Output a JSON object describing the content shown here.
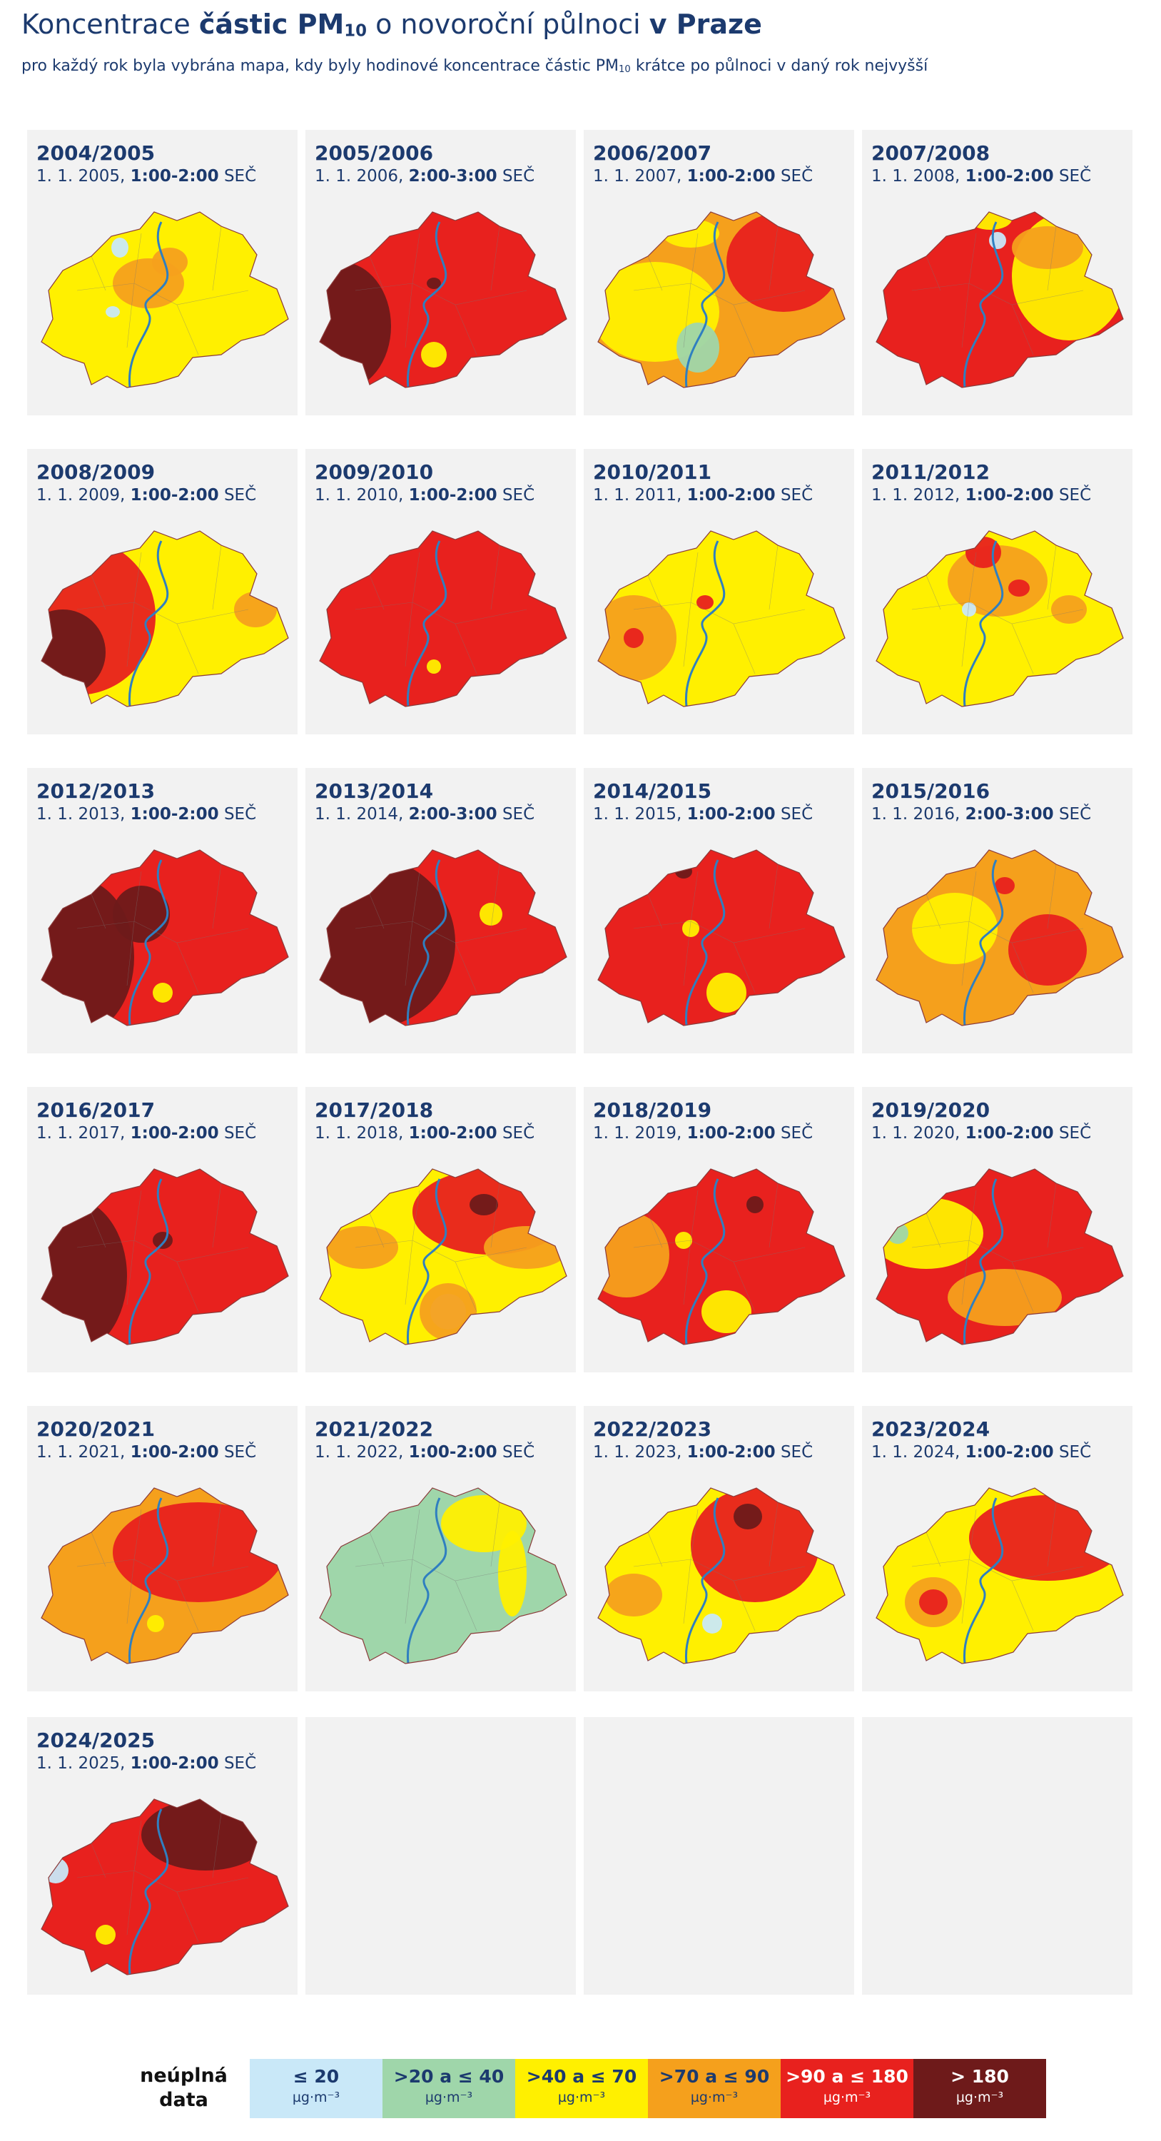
{
  "header": {
    "title": [
      "Koncentrace ",
      "částic PM",
      "10",
      " o novoroční půlnoci ",
      "v Praze"
    ],
    "subtitle": [
      "pro každý rok byla vybrána mapa, kdy byly hodinové koncentrace částic PM",
      "10",
      " krátce po půlnoci v daný rok nejvyšší"
    ]
  },
  "panels": [
    {
      "season": "2004/2005",
      "date": "1. 1. 2005, ",
      "time": "1:00-2:00",
      "zone": " SEČ"
    },
    {
      "season": "2005/2006",
      "date": "1. 1. 2006, ",
      "time": "2:00-3:00",
      "zone": " SEČ"
    },
    {
      "season": "2006/2007",
      "date": "1. 1. 2007, ",
      "time": "1:00-2:00",
      "zone": " SEČ"
    },
    {
      "season": "2007/2008",
      "date": "1. 1. 2008, ",
      "time": "1:00-2:00",
      "zone": " SEČ"
    },
    {
      "season": "2008/2009",
      "date": "1. 1. 2009, ",
      "time": "1:00-2:00",
      "zone": " SEČ"
    },
    {
      "season": "2009/2010",
      "date": "1. 1. 2010, ",
      "time": "1:00-2:00",
      "zone": " SEČ"
    },
    {
      "season": "2010/2011",
      "date": "1. 1. 2011, ",
      "time": "1:00-2:00",
      "zone": " SEČ"
    },
    {
      "season": "2011/2012",
      "date": "1. 1. 2012, ",
      "time": "1:00-2:00",
      "zone": " SEČ"
    },
    {
      "season": "2012/2013",
      "date": "1. 1. 2013, ",
      "time": "1:00-2:00",
      "zone": " SEČ"
    },
    {
      "season": "2013/2014",
      "date": "1. 1. 2014, ",
      "time": "2:00-3:00",
      "zone": " SEČ"
    },
    {
      "season": "2014/2015",
      "date": "1. 1. 2015, ",
      "time": "1:00-2:00",
      "zone": " SEČ"
    },
    {
      "season": "2015/2016",
      "date": "1. 1. 2016, ",
      "time": "2:00-3:00",
      "zone": " SEČ"
    },
    {
      "season": "2016/2017",
      "date": "1. 1. 2017, ",
      "time": "1:00-2:00",
      "zone": " SEČ"
    },
    {
      "season": "2017/2018",
      "date": "1. 1. 2018, ",
      "time": "1:00-2:00",
      "zone": " SEČ"
    },
    {
      "season": "2018/2019",
      "date": "1. 1. 2019, ",
      "time": "1:00-2:00",
      "zone": " SEČ"
    },
    {
      "season": "2019/2020",
      "date": "1. 1. 2020, ",
      "time": "1:00-2:00",
      "zone": " SEČ"
    },
    {
      "season": "2020/2021",
      "date": "1. 1. 2021, ",
      "time": "1:00-2:00",
      "zone": " SEČ"
    },
    {
      "season": "2021/2022",
      "date": "1. 1. 2022, ",
      "time": "1:00-2:00",
      "zone": " SEČ"
    },
    {
      "season": "2022/2023",
      "date": "1. 1. 2023, ",
      "time": "1:00-2:00",
      "zone": " SEČ"
    },
    {
      "season": "2023/2024",
      "date": "1. 1. 2024, ",
      "time": "1:00-2:00",
      "zone": " SEČ"
    },
    {
      "season": "2024/2025",
      "date": "1. 1. 2025, ",
      "time": "1:00-2:00",
      "zone": " SEČ"
    }
  ],
  "legend": {
    "missing": "neúplná data",
    "items": [
      {
        "label": "≤ 20",
        "unit": "µg·m⁻³",
        "color": "#c9e8f8"
      },
      {
        "label": ">20 a ≤ 40",
        "unit": "µg·m⁻³",
        "color": "#9fd6aa"
      },
      {
        "label": ">40 a ≤ 70",
        "unit": "µg·m⁻³",
        "color": "#fff000"
      },
      {
        "label": ">70 a ≤ 90",
        "unit": "µg·m⁻³",
        "color": "#f5a01c"
      },
      {
        "label": ">90 a ≤ 180",
        "unit": "µg·m⁻³",
        "color": "#e8211e"
      },
      {
        "label": "> 180",
        "unit": "µg·m⁻³",
        "color": "#6e1a1a"
      }
    ]
  }
}
